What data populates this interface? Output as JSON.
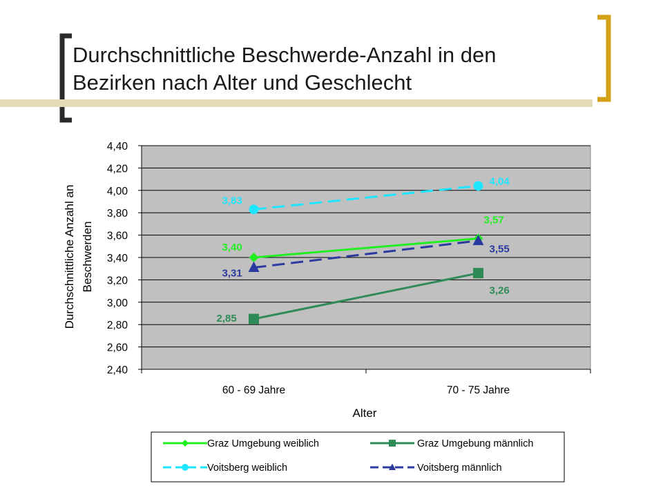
{
  "title": {
    "line1": "Durchschnittliche Beschwerde-Anzahl in den",
    "line2": "Bezirken nach Alter und Geschlecht"
  },
  "colors": {
    "bracket": "#d4a017",
    "plot_bg": "#c0c0c0",
    "graz_weiblich": "#22ee22",
    "graz_maennlich": "#2e8b57",
    "voitsberg_weiblich": "#1ee6ff",
    "voitsberg_maennlich": "#2b3a9e"
  },
  "chart_data": {
    "type": "line",
    "xlabel": "Alter",
    "ylabel_lines": [
      "Durchschnittliche Anzahl an",
      "Beschwerden"
    ],
    "categories": [
      "60 - 69 Jahre",
      "70 - 75 Jahre"
    ],
    "ylim": [
      2.4,
      4.4
    ],
    "yticks": [
      "4,40",
      "4,20",
      "4,00",
      "3,80",
      "3,60",
      "3,40",
      "3,20",
      "3,00",
      "2,80",
      "2,60",
      "2,40"
    ],
    "grid": true,
    "legend_position": "bottom",
    "series": [
      {
        "name": "Graz Umgebung weiblich",
        "values": [
          3.4,
          3.57
        ],
        "labels": [
          "3,40",
          "3,57"
        ],
        "color": "#22ee22",
        "dash": "solid",
        "marker": "diamond"
      },
      {
        "name": "Graz Umgebung männlich",
        "values": [
          2.85,
          3.26
        ],
        "labels": [
          "2,85",
          "3,26"
        ],
        "color": "#2e8b57",
        "dash": "solid",
        "marker": "square"
      },
      {
        "name": "Voitsberg weiblich",
        "values": [
          3.83,
          4.04
        ],
        "labels": [
          "3,83",
          "4,04"
        ],
        "color": "#1ee6ff",
        "dash": "dashed",
        "marker": "circle"
      },
      {
        "name": "Voitsberg männlich",
        "values": [
          3.31,
          3.55
        ],
        "labels": [
          "3,31",
          "3,55"
        ],
        "color": "#2b3a9e",
        "dash": "dashed",
        "marker": "triangle"
      }
    ]
  }
}
